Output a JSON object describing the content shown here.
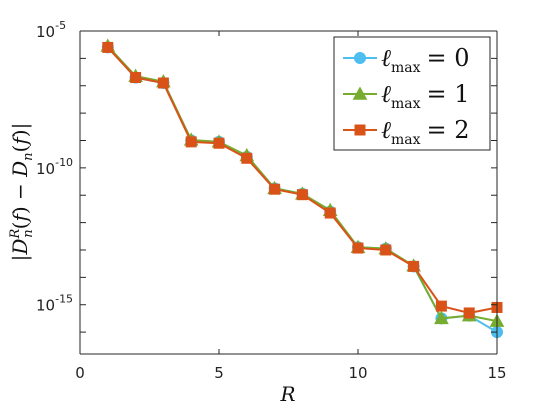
{
  "chart_data": {
    "type": "line",
    "xlabel": "R",
    "ylabel": "|D_n^R(f) − D_n(f)|",
    "xlim": [
      0,
      15
    ],
    "ylim_log10": [
      -16.8,
      -5
    ],
    "yscale": "log",
    "x_ticks": [
      "0",
      "5",
      "10",
      "15"
    ],
    "y_ticks": [
      {
        "base": "10",
        "exp": "-5",
        "log10": -5
      },
      {
        "base": "10",
        "exp": "-10",
        "log10": -10
      },
      {
        "base": "10",
        "exp": "-15",
        "log10": -15
      }
    ],
    "legend_position": "top-right",
    "series": [
      {
        "name_var": "ℓ",
        "name_sub": "max",
        "name_val": "= 0",
        "color": "#4DBEEE",
        "marker": "circle",
        "x": [
          1,
          2,
          3,
          4,
          5,
          6,
          7,
          8,
          9,
          10,
          11,
          12,
          13,
          14,
          15
        ],
        "log10_y": [
          -5.6,
          -6.7,
          -6.9,
          -9.0,
          -9.05,
          -9.6,
          -10.75,
          -10.95,
          -11.6,
          -12.9,
          -12.95,
          -13.6,
          -15.5,
          -15.4,
          -16.0
        ]
      },
      {
        "name_var": "ℓ",
        "name_sub": "max",
        "name_val": "= 1",
        "color": "#77AC30",
        "marker": "triangle",
        "x": [
          1,
          2,
          3,
          4,
          5,
          6,
          7,
          8,
          9,
          10,
          11,
          12,
          13,
          14,
          15
        ],
        "log10_y": [
          -5.55,
          -6.65,
          -6.85,
          -8.98,
          -9.05,
          -9.55,
          -10.75,
          -10.95,
          -11.55,
          -12.9,
          -12.95,
          -13.58,
          -15.5,
          -15.4,
          -15.6
        ]
      },
      {
        "name_var": "ℓ",
        "name_sub": "max",
        "name_val": "= 2",
        "color": "#D95319",
        "marker": "square",
        "x": [
          1,
          2,
          3,
          4,
          5,
          6,
          7,
          8,
          9,
          10,
          11,
          12,
          13,
          14,
          15
        ],
        "log10_y": [
          -5.6,
          -6.7,
          -6.9,
          -9.05,
          -9.1,
          -9.65,
          -10.78,
          -10.98,
          -11.65,
          -12.93,
          -13.0,
          -13.6,
          -15.05,
          -15.3,
          -15.1
        ]
      }
    ]
  }
}
